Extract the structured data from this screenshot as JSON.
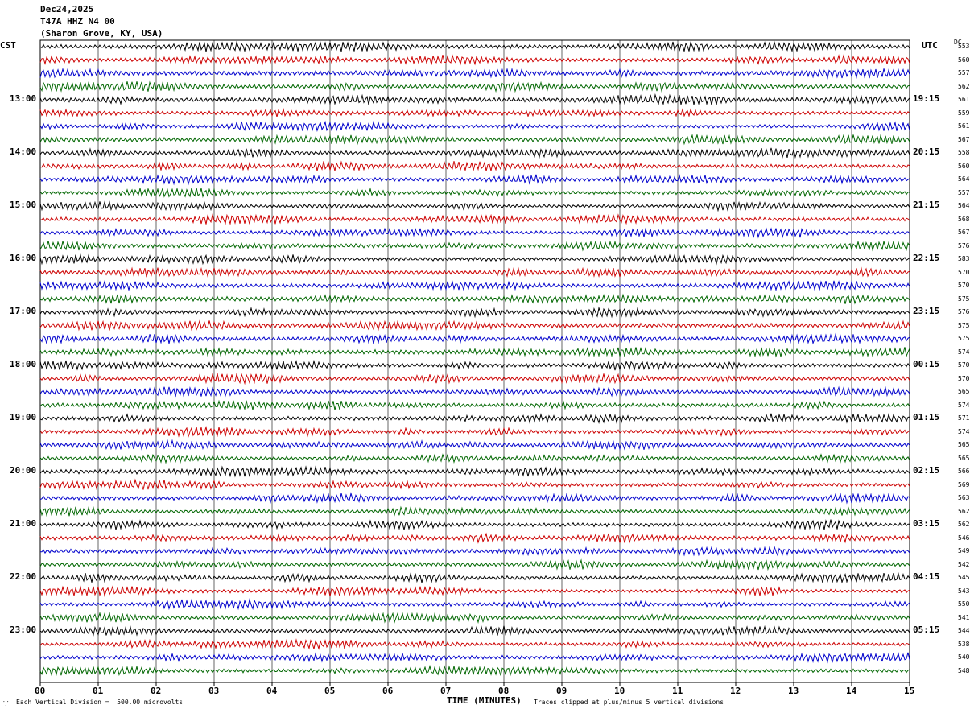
{
  "header": {
    "date": "Dec24,2025",
    "station": "T47A HHZ N4 00",
    "location": "(Sharon Grove, KY, USA)"
  },
  "left_tz": "CST",
  "right_tz": "UTC",
  "dc_label": "DC",
  "footer": {
    "scale": "Each Vertical Division =  500.00 microvolts",
    "xlabel": "TIME (MINUTES)",
    "clip_note": "Traces clipped at plus/minus 5 vertical divisions"
  },
  "colors": {
    "trace": [
      "#000000",
      "#cc0000",
      "#0000cc",
      "#006600"
    ]
  },
  "chart_data": {
    "type": "line",
    "title": "T47A HHZ N4 00 (Sharon Grove, KY, USA) Dec24,2025",
    "xlabel": "TIME (MINUTES)",
    "xlim": [
      0,
      15
    ],
    "x_ticks": [
      "00",
      "01",
      "02",
      "03",
      "04",
      "05",
      "06",
      "07",
      "08",
      "09",
      "10",
      "11",
      "12",
      "13",
      "14",
      "15"
    ],
    "trace_minutes": 15,
    "rows_per_hour": 4,
    "row_count": 48,
    "left_hour_labels": [
      "13:00",
      "14:00",
      "15:00",
      "16:00",
      "17:00",
      "18:00",
      "19:00",
      "20:00",
      "21:00",
      "22:00",
      "23:00"
    ],
    "right_hour_labels": [
      "19:15",
      "20:15",
      "21:15",
      "22:15",
      "23:15",
      "00:15",
      "01:15",
      "02:15",
      "03:15",
      "04:15",
      "05:15"
    ],
    "dc_offsets": [
      553,
      560,
      557,
      562,
      561,
      559,
      561,
      567,
      558,
      560,
      564,
      557,
      564,
      568,
      567,
      576,
      583,
      570,
      570,
      575,
      576,
      575,
      575,
      574,
      570,
      570,
      565,
      574,
      571,
      574,
      565,
      565,
      566,
      569,
      563,
      562,
      562,
      546,
      549,
      542,
      545,
      543,
      550,
      541,
      544,
      538,
      540,
      548
    ],
    "scale_microvolts_per_division": 500.0,
    "clip_divisions": 5
  }
}
